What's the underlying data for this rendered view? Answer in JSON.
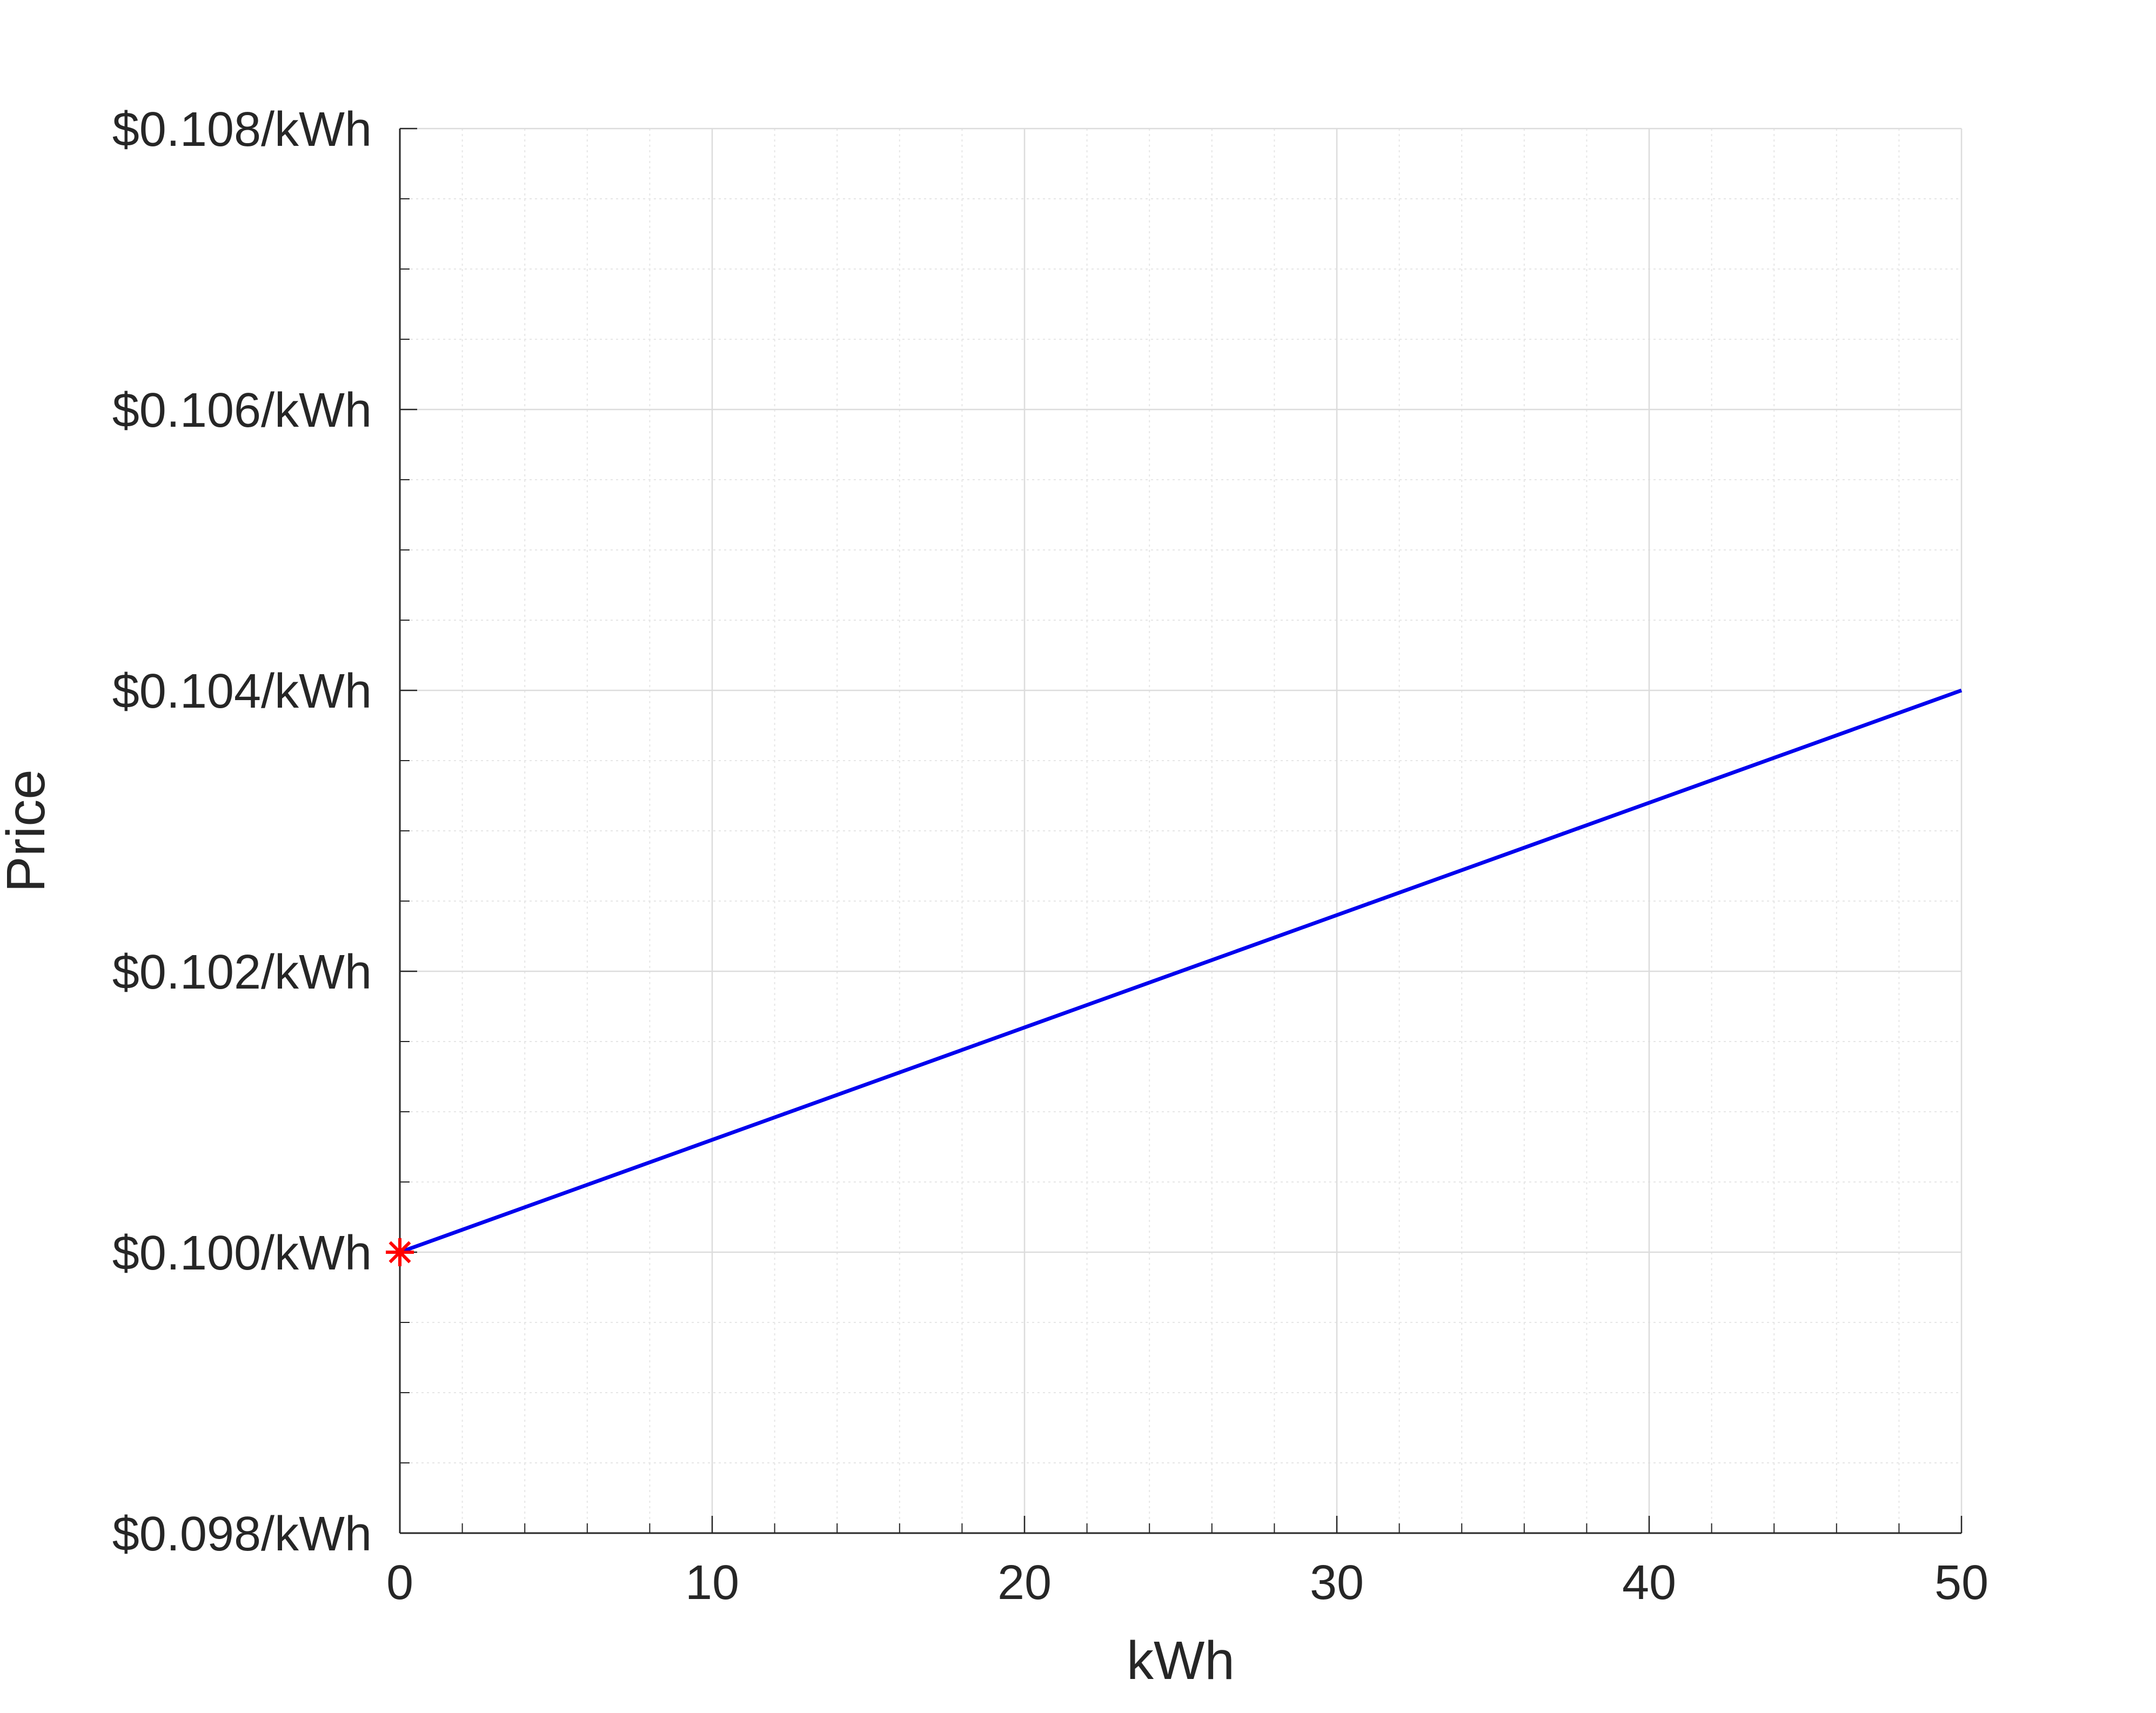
{
  "chart_data": {
    "type": "line",
    "title": "",
    "xlabel": "kWh",
    "ylabel": "Price",
    "xlim": [
      0,
      50
    ],
    "ylim": [
      0.098,
      0.108
    ],
    "x_ticks": [
      0,
      10,
      20,
      30,
      40,
      50
    ],
    "x_tick_labels": [
      "0",
      "10",
      "20",
      "30",
      "40",
      "50"
    ],
    "y_ticks": [
      0.098,
      0.1,
      0.102,
      0.104,
      0.106,
      0.108
    ],
    "y_tick_labels": [
      "$0.098/kWh",
      "$0.100/kWh",
      "$0.102/kWh",
      "$0.104/kWh",
      "$0.106/kWh",
      "$0.108/kWh"
    ],
    "grid": true,
    "series": [
      {
        "x": [
          0,
          50
        ],
        "y": [
          0.1,
          0.104
        ],
        "color": "#0000ee",
        "style": "line"
      },
      {
        "x": [
          0
        ],
        "y": [
          0.1
        ],
        "color": "#ff0000",
        "style": "marker-asterisk"
      }
    ]
  }
}
